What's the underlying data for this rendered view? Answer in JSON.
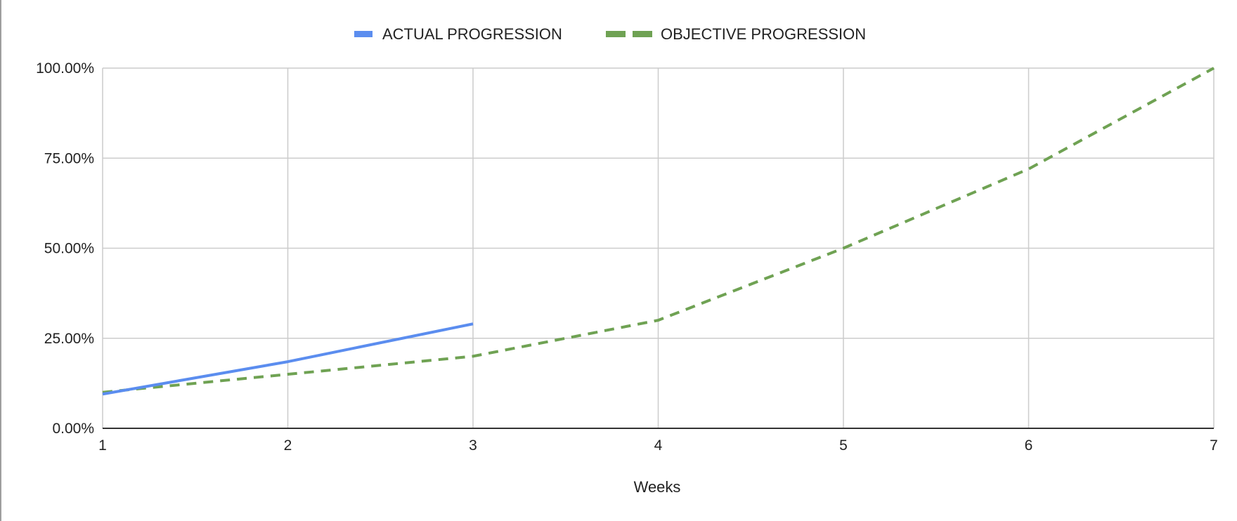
{
  "chart_data": {
    "type": "line",
    "title": "",
    "xlabel": "Weeks",
    "ylabel": "",
    "x": [
      1,
      2,
      3,
      4,
      5,
      6,
      7
    ],
    "xlim": [
      1,
      7
    ],
    "ylim": [
      0,
      1
    ],
    "x_tick_labels": [
      "1",
      "2",
      "3",
      "4",
      "5",
      "6",
      "7"
    ],
    "y_ticks": [
      0,
      0.25,
      0.5,
      0.75,
      1
    ],
    "y_tick_labels": [
      "0.00%",
      "25.00%",
      "50.00%",
      "75.00%",
      "100.00%"
    ],
    "grid": true,
    "legend_position": "top-center",
    "series": [
      {
        "name": "ACTUAL PROGRESSION",
        "color": "#5b8def",
        "style": "solid",
        "values": [
          0.095,
          0.185,
          0.29,
          null,
          null,
          null,
          null
        ]
      },
      {
        "name": "OBJECTIVE PROGRESSION",
        "color": "#6fa253",
        "style": "dashed",
        "values": [
          0.1,
          0.15,
          0.2,
          0.3,
          0.5,
          0.72,
          1.0
        ]
      }
    ]
  }
}
